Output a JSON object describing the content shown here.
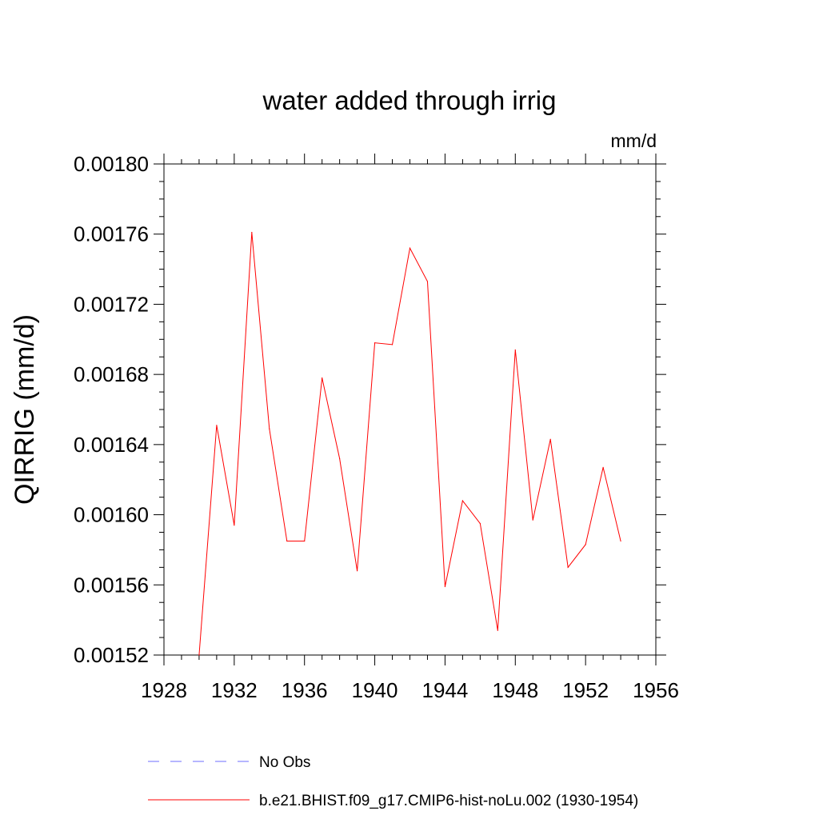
{
  "chart_data": {
    "type": "line",
    "title": "water added through irrig",
    "units_label": "mm/d",
    "ylabel": "QIRRIG  (mm/d)",
    "xlabel": "",
    "xlim": [
      1928,
      1956
    ],
    "ylim": [
      0.00152,
      0.0018
    ],
    "x_ticks": [
      "1928",
      "1932",
      "1936",
      "1940",
      "1944",
      "1948",
      "1952",
      "1956"
    ],
    "y_ticks": [
      "0.00152",
      "0.00156",
      "0.00160",
      "0.00164",
      "0.00168",
      "0.00172",
      "0.00176",
      "0.00180"
    ],
    "grid": false,
    "legend_placement": "bottom",
    "series": [
      {
        "name": "No Obs",
        "color": "#6c6cff",
        "dash": "dashed",
        "x": [],
        "y": []
      },
      {
        "name": "b.e21.BHIST.f09_g17.CMIP6-hist-noLu.002 (1930-1954)",
        "color": "#ff0000",
        "dash": "solid",
        "x": [
          1930,
          1931,
          1932,
          1933,
          1934,
          1935,
          1936,
          1937,
          1938,
          1939,
          1940,
          1941,
          1942,
          1943,
          1944,
          1945,
          1946,
          1947,
          1948,
          1949,
          1950,
          1951,
          1952,
          1953,
          1954
        ],
        "y": [
          0.00152,
          0.001651,
          0.001594,
          0.001761,
          0.001649,
          0.001585,
          0.001585,
          0.001678,
          0.001632,
          0.001568,
          0.001698,
          0.001697,
          0.001752,
          0.001733,
          0.001559,
          0.001608,
          0.001595,
          0.001534,
          0.001694,
          0.001597,
          0.001643,
          0.00157,
          0.001583,
          0.001627,
          0.001585
        ]
      }
    ]
  }
}
